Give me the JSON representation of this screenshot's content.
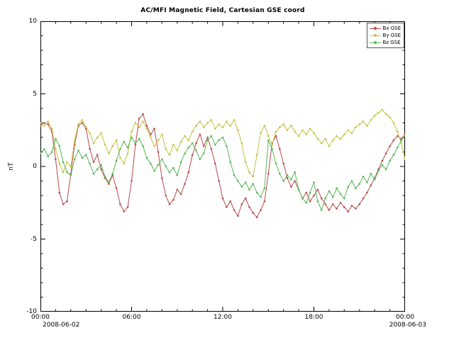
{
  "chart_data": {
    "type": "line",
    "title": "AC/MFI  Magnetic Field, Cartesian GSE coord",
    "ylabel": "nT",
    "xlim": [
      0,
      24
    ],
    "ylim": [
      -10,
      10
    ],
    "x_step_hours": 0.25,
    "x_tick_labels": [
      "00:00",
      "06:00",
      "12:00",
      "18:00",
      "00:00"
    ],
    "x_date_start": "2008-06-02",
    "x_date_end": "2008-06-03",
    "y_tick_labels": [
      "10",
      "5",
      "0",
      "-5",
      "-10"
    ],
    "y_major_ticks": [
      -10,
      -5,
      0,
      5,
      10
    ],
    "x_major_ticks_hours": [
      0,
      6,
      12,
      18,
      24
    ],
    "grid": false,
    "legend_position": "top-right",
    "series": [
      {
        "name": "Bx GSE",
        "color": "#b94a4a",
        "values": [
          2.8,
          3.0,
          2.9,
          2.4,
          0.5,
          -1.8,
          -2.6,
          -2.4,
          -0.5,
          1.5,
          2.8,
          3.0,
          2.6,
          1.2,
          0.3,
          0.8,
          -0.2,
          -0.8,
          -1.2,
          -0.6,
          -1.5,
          -2.6,
          -3.1,
          -2.8,
          -1.0,
          1.5,
          3.3,
          3.6,
          2.8,
          2.2,
          2.6,
          1.0,
          -0.8,
          -2.0,
          -2.6,
          -2.3,
          -1.6,
          -1.9,
          -1.2,
          -0.4,
          0.8,
          1.6,
          2.2,
          1.4,
          2.0,
          1.2,
          0.2,
          -1.0,
          -2.2,
          -2.8,
          -2.4,
          -3.0,
          -3.4,
          -2.6,
          -2.2,
          -2.8,
          -3.2,
          -3.5,
          -3.0,
          -2.4,
          -0.5,
          1.6,
          2.1,
          1.2,
          0.2,
          -0.8,
          -1.4,
          -1.0,
          -1.6,
          -2.2,
          -1.8,
          -2.4,
          -2.0,
          -1.6,
          -2.2,
          -2.6,
          -3.0,
          -2.6,
          -2.9,
          -2.5,
          -2.8,
          -3.1,
          -2.7,
          -2.9,
          -2.6,
          -2.2,
          -1.8,
          -1.3,
          -0.8,
          -0.2,
          0.4,
          0.9,
          1.4,
          1.8,
          2.1,
          1.9,
          2.2
        ]
      },
      {
        "name": "By GSE",
        "color": "#c3c342",
        "values": [
          3.0,
          2.8,
          3.1,
          2.6,
          1.2,
          0.2,
          -0.4,
          0.3,
          0.0,
          1.8,
          2.9,
          3.2,
          2.7,
          2.3,
          1.6,
          2.0,
          2.3,
          1.5,
          0.9,
          1.4,
          1.8,
          0.6,
          0.2,
          0.9,
          2.4,
          3.0,
          2.7,
          3.1,
          2.6,
          2.0,
          1.4,
          1.8,
          2.2,
          1.2,
          0.8,
          1.5,
          1.1,
          1.7,
          2.1,
          1.8,
          2.4,
          2.8,
          3.1,
          2.7,
          3.0,
          3.2,
          2.6,
          2.9,
          2.7,
          3.1,
          2.8,
          3.2,
          2.5,
          1.6,
          0.3,
          -0.4,
          -0.7,
          0.8,
          2.3,
          2.8,
          2.1,
          1.5,
          2.4,
          2.7,
          2.9,
          2.5,
          2.8,
          2.4,
          2.1,
          2.5,
          2.2,
          2.6,
          2.3,
          1.9,
          1.6,
          1.9,
          1.4,
          1.8,
          2.1,
          1.9,
          2.2,
          2.5,
          2.3,
          2.7,
          2.9,
          3.1,
          2.8,
          3.2,
          3.5,
          3.7,
          3.9,
          3.6,
          3.4,
          3.0,
          2.4,
          1.6,
          0.5
        ]
      },
      {
        "name": "Bz GSE",
        "color": "#57b757",
        "values": [
          0.9,
          1.2,
          0.7,
          1.0,
          1.9,
          1.4,
          0.3,
          -0.4,
          -0.6,
          0.5,
          1.1,
          0.6,
          0.8,
          0.2,
          -0.5,
          -0.2,
          0.1,
          -0.7,
          -1.1,
          -0.5,
          0.4,
          1.2,
          1.7,
          1.3,
          2.0,
          1.6,
          1.9,
          1.4,
          0.6,
          0.2,
          -0.3,
          0.1,
          0.5,
          0.0,
          -0.4,
          -0.1,
          -0.6,
          0.3,
          0.9,
          1.3,
          1.6,
          1.1,
          0.5,
          0.9,
          1.8,
          2.1,
          1.5,
          1.8,
          2.0,
          1.4,
          0.3,
          -0.6,
          -1.0,
          -1.4,
          -1.1,
          -1.6,
          -1.2,
          -1.8,
          -2.1,
          -1.5,
          1.8,
          1.2,
          0.2,
          -0.5,
          -1.0,
          -0.6,
          -0.9,
          -0.4,
          -1.6,
          -2.2,
          -2.5,
          -1.8,
          -1.1,
          -2.4,
          -3.0,
          -2.2,
          -1.7,
          -2.1,
          -1.5,
          -1.9,
          -2.2,
          -1.4,
          -1.0,
          -1.5,
          -1.2,
          -0.7,
          -1.1,
          -0.5,
          -0.9,
          -0.3,
          0.1,
          -0.2,
          0.4,
          0.8,
          1.3,
          1.8,
          2.1
        ]
      }
    ]
  }
}
